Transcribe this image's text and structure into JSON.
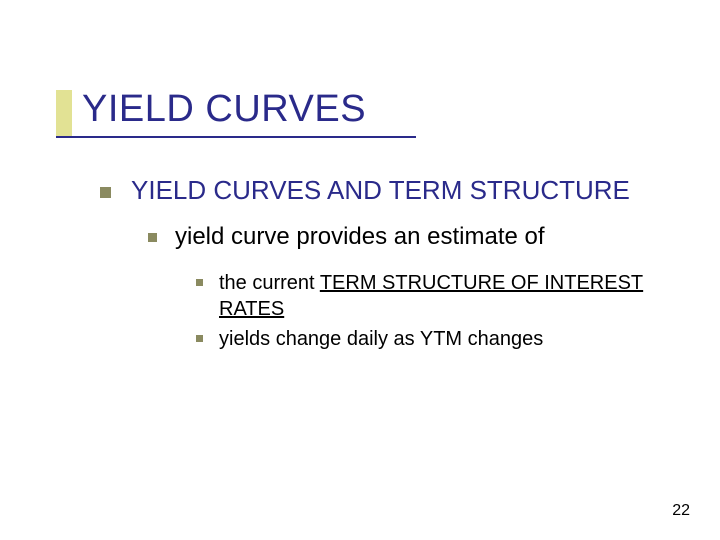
{
  "title": "YIELD CURVES",
  "level1": "YIELD CURVES AND TERM STRUCTURE",
  "level2": "yield curve provides an estimate  of",
  "level3a_prefix": "the current ",
  "level3a_underlined": "TERM STRUCTURE OF INTEREST RATES",
  "level3b": "yields change daily as YTM changes",
  "page_number": "22",
  "colors": {
    "title_color": "#2a2a8a",
    "bullet_color": "#8a8a60",
    "accent_bar": "#e2e294",
    "body_text": "#000000",
    "background": "#ffffff"
  },
  "font_sizes": {
    "title": 38,
    "level1": 26,
    "level2": 24,
    "level3": 20,
    "page_num": 16
  }
}
